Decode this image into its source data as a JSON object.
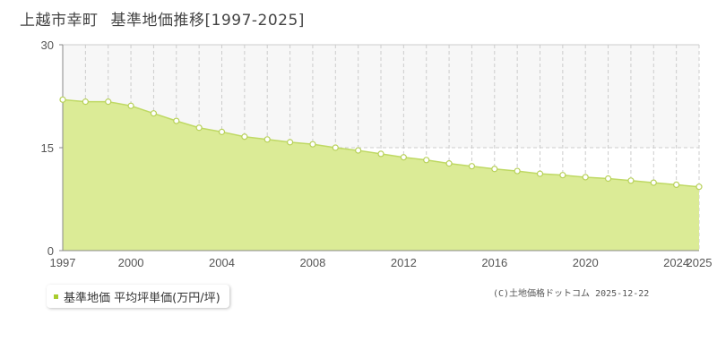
{
  "page": {
    "title_place": "上越市幸町",
    "title_main": "基準地価推移[1997-2025]",
    "copyright": "(C)土地価格ドットコム 2025-12-22"
  },
  "legend": {
    "label": "基準地価 平均坪単価(万円/坪)"
  },
  "colors": {
    "fill": "#dbeb96",
    "line": "#bfd964",
    "marker_stroke": "#b8d15a",
    "legend_swatch": "#a8cc2e",
    "grid": "#cccccc",
    "upper_band": "#f7f7f7"
  },
  "chart_data": {
    "type": "area",
    "title": "上越市幸町 基準地価推移[1997-2025]",
    "xlabel": "",
    "ylabel": "",
    "x": [
      1997,
      1998,
      1999,
      2000,
      2001,
      2002,
      2003,
      2004,
      2005,
      2006,
      2007,
      2008,
      2009,
      2010,
      2011,
      2012,
      2013,
      2014,
      2015,
      2016,
      2017,
      2018,
      2019,
      2020,
      2021,
      2022,
      2023,
      2024,
      2025
    ],
    "series": [
      {
        "name": "基準地価 平均坪単価(万円/坪)",
        "values": [
          22.0,
          21.7,
          21.7,
          21.1,
          20.0,
          18.9,
          17.9,
          17.3,
          16.6,
          16.2,
          15.8,
          15.5,
          15.0,
          14.6,
          14.1,
          13.6,
          13.2,
          12.7,
          12.3,
          11.9,
          11.6,
          11.2,
          11.0,
          10.7,
          10.5,
          10.2,
          9.9,
          9.6,
          9.3
        ]
      }
    ],
    "xlim": [
      1997,
      2025
    ],
    "ylim": [
      0,
      30
    ],
    "y_ticks": [
      0,
      15,
      30
    ],
    "x_tick_labels": [
      1997,
      2000,
      2004,
      2008,
      2012,
      2016,
      2020,
      2024,
      2025
    ],
    "grid": true,
    "legend_position": "bottom-left"
  }
}
